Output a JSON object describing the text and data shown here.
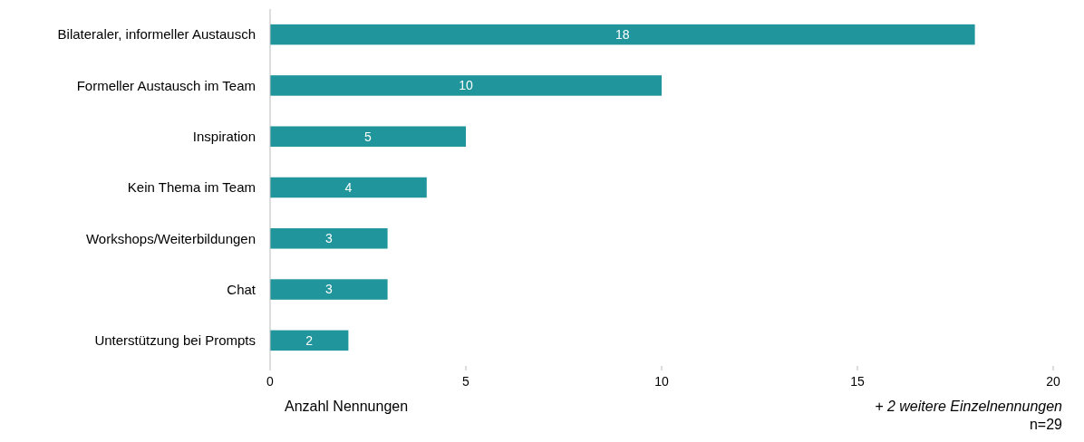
{
  "chart_data": {
    "type": "bar",
    "orientation": "horizontal",
    "xlabel": "Anzahl Nennungen",
    "categories": [
      "Bilateraler, informeller Austausch",
      "Formeller Austausch im Team",
      "Inspiration",
      "Kein Thema im Team",
      "Workshops/Weiterbildungen",
      "Chat",
      "Unterstützung bei Prompts"
    ],
    "values": [
      18,
      10,
      5,
      4,
      3,
      3,
      2
    ],
    "color": "#20969c",
    "xlim": [
      0,
      20
    ],
    "xticks": [
      0,
      5,
      10,
      15,
      20
    ],
    "grid": false,
    "data_labels": true,
    "annotations": [
      "+ 2 weitere Einzelnennungen",
      "n=29"
    ]
  }
}
